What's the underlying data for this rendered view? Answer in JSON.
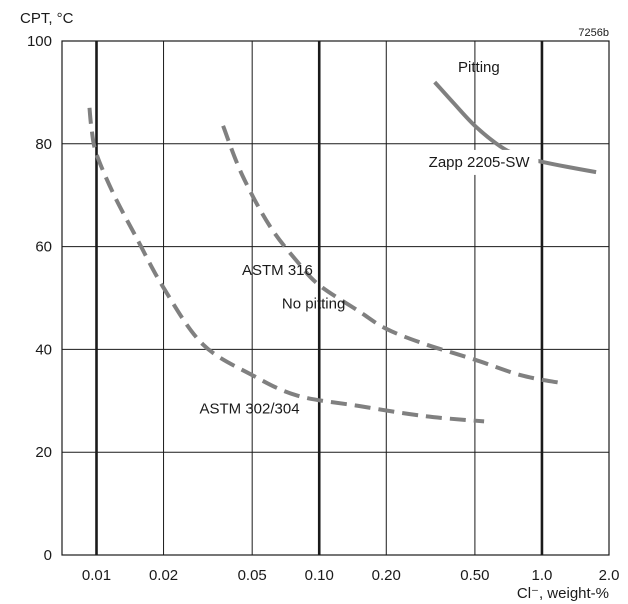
{
  "chart_data": {
    "type": "line",
    "title": "",
    "figure_id": "7256b",
    "ylabel": "CPT, °C",
    "xlabel": "Cl⁻, weight-%",
    "x_scale": "log",
    "xlim": [
      0.007,
      2.0
    ],
    "ylim": [
      0,
      100
    ],
    "x_ticks": [
      {
        "value": 0.01,
        "label": "0.01"
      },
      {
        "value": 0.02,
        "label": "0.02"
      },
      {
        "value": 0.05,
        "label": "0.05"
      },
      {
        "value": 0.1,
        "label": "0.10"
      },
      {
        "value": 0.2,
        "label": "0.20"
      },
      {
        "value": 0.5,
        "label": "0.50"
      },
      {
        "value": 1.0,
        "label": "1.0"
      },
      {
        "value": 2.0,
        "label": "2.0"
      }
    ],
    "y_ticks": [
      {
        "value": 0,
        "label": "0"
      },
      {
        "value": 20,
        "label": "20"
      },
      {
        "value": 40,
        "label": "40"
      },
      {
        "value": 60,
        "label": "60"
      },
      {
        "value": 80,
        "label": "80"
      },
      {
        "value": 100,
        "label": "100"
      }
    ],
    "grid": true,
    "annotations": [
      {
        "text": "Pitting",
        "x": 0.42,
        "y": 94
      },
      {
        "text": "No pitting",
        "x": 0.068,
        "y": 48
      }
    ],
    "series": [
      {
        "name": "Zapp 2205-SW",
        "style": "solid",
        "color": "#808080",
        "label_at": {
          "x": 0.31,
          "y": 75.5
        },
        "points": [
          [
            0.33,
            92
          ],
          [
            0.4,
            88
          ],
          [
            0.5,
            83.5
          ],
          [
            0.65,
            79.5
          ],
          [
            0.8,
            77.5
          ],
          [
            1.0,
            76.5
          ],
          [
            1.3,
            75.5
          ],
          [
            1.75,
            74.5
          ]
        ]
      },
      {
        "name": "ASTM 316",
        "style": "dashed",
        "color": "#808080",
        "label_at": {
          "x": 0.045,
          "y": 54.5
        },
        "points": [
          [
            0.037,
            83.5
          ],
          [
            0.045,
            74
          ],
          [
            0.06,
            64
          ],
          [
            0.08,
            57
          ],
          [
            0.1,
            52.5
          ],
          [
            0.15,
            47.5
          ],
          [
            0.2,
            44
          ],
          [
            0.3,
            41
          ],
          [
            0.5,
            38
          ],
          [
            0.8,
            35
          ],
          [
            1.2,
            33.5
          ]
        ]
      },
      {
        "name": "ASTM 302/304",
        "style": "dashed",
        "color": "#808080",
        "label_at": {
          "x": 0.029,
          "y": 27.5
        },
        "points": [
          [
            0.0093,
            87
          ],
          [
            0.0095,
            83
          ],
          [
            0.01,
            78
          ],
          [
            0.012,
            70
          ],
          [
            0.015,
            62
          ],
          [
            0.02,
            52
          ],
          [
            0.03,
            41
          ],
          [
            0.05,
            35
          ],
          [
            0.08,
            31
          ],
          [
            0.15,
            29
          ],
          [
            0.3,
            27
          ],
          [
            0.55,
            26
          ]
        ]
      }
    ]
  }
}
